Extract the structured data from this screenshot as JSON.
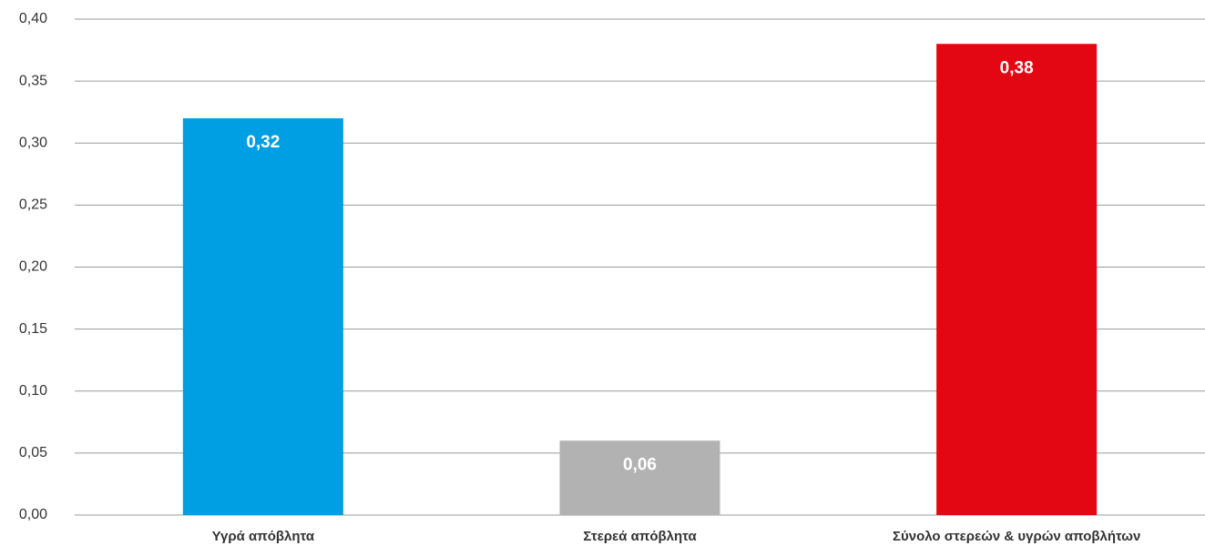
{
  "chart_data": {
    "type": "bar",
    "categories": [
      "Υγρά απόβλητα",
      "Στερεά απόβλητα",
      "Σύνολο στερεών & υγρών αποβλήτων"
    ],
    "values": [
      0.32,
      0.06,
      0.38
    ],
    "value_labels": [
      "0,32",
      "0,06",
      "0,38"
    ],
    "colors": [
      "#009fe3",
      "#b2b2b2",
      "#e30613"
    ],
    "ylim": [
      0,
      0.4
    ],
    "yticks": [
      {
        "value": 0,
        "label": "0,00"
      },
      {
        "value": 0.05,
        "label": "0,05"
      },
      {
        "value": 0.1,
        "label": "0,10"
      },
      {
        "value": 0.15,
        "label": "0,15"
      },
      {
        "value": 0.2,
        "label": "0,20"
      },
      {
        "value": 0.25,
        "label": "0,25"
      },
      {
        "value": 0.3,
        "label": "0,30"
      },
      {
        "value": 0.35,
        "label": "0,35"
      },
      {
        "value": 0.4,
        "label": "0,40"
      }
    ],
    "grid": true
  }
}
